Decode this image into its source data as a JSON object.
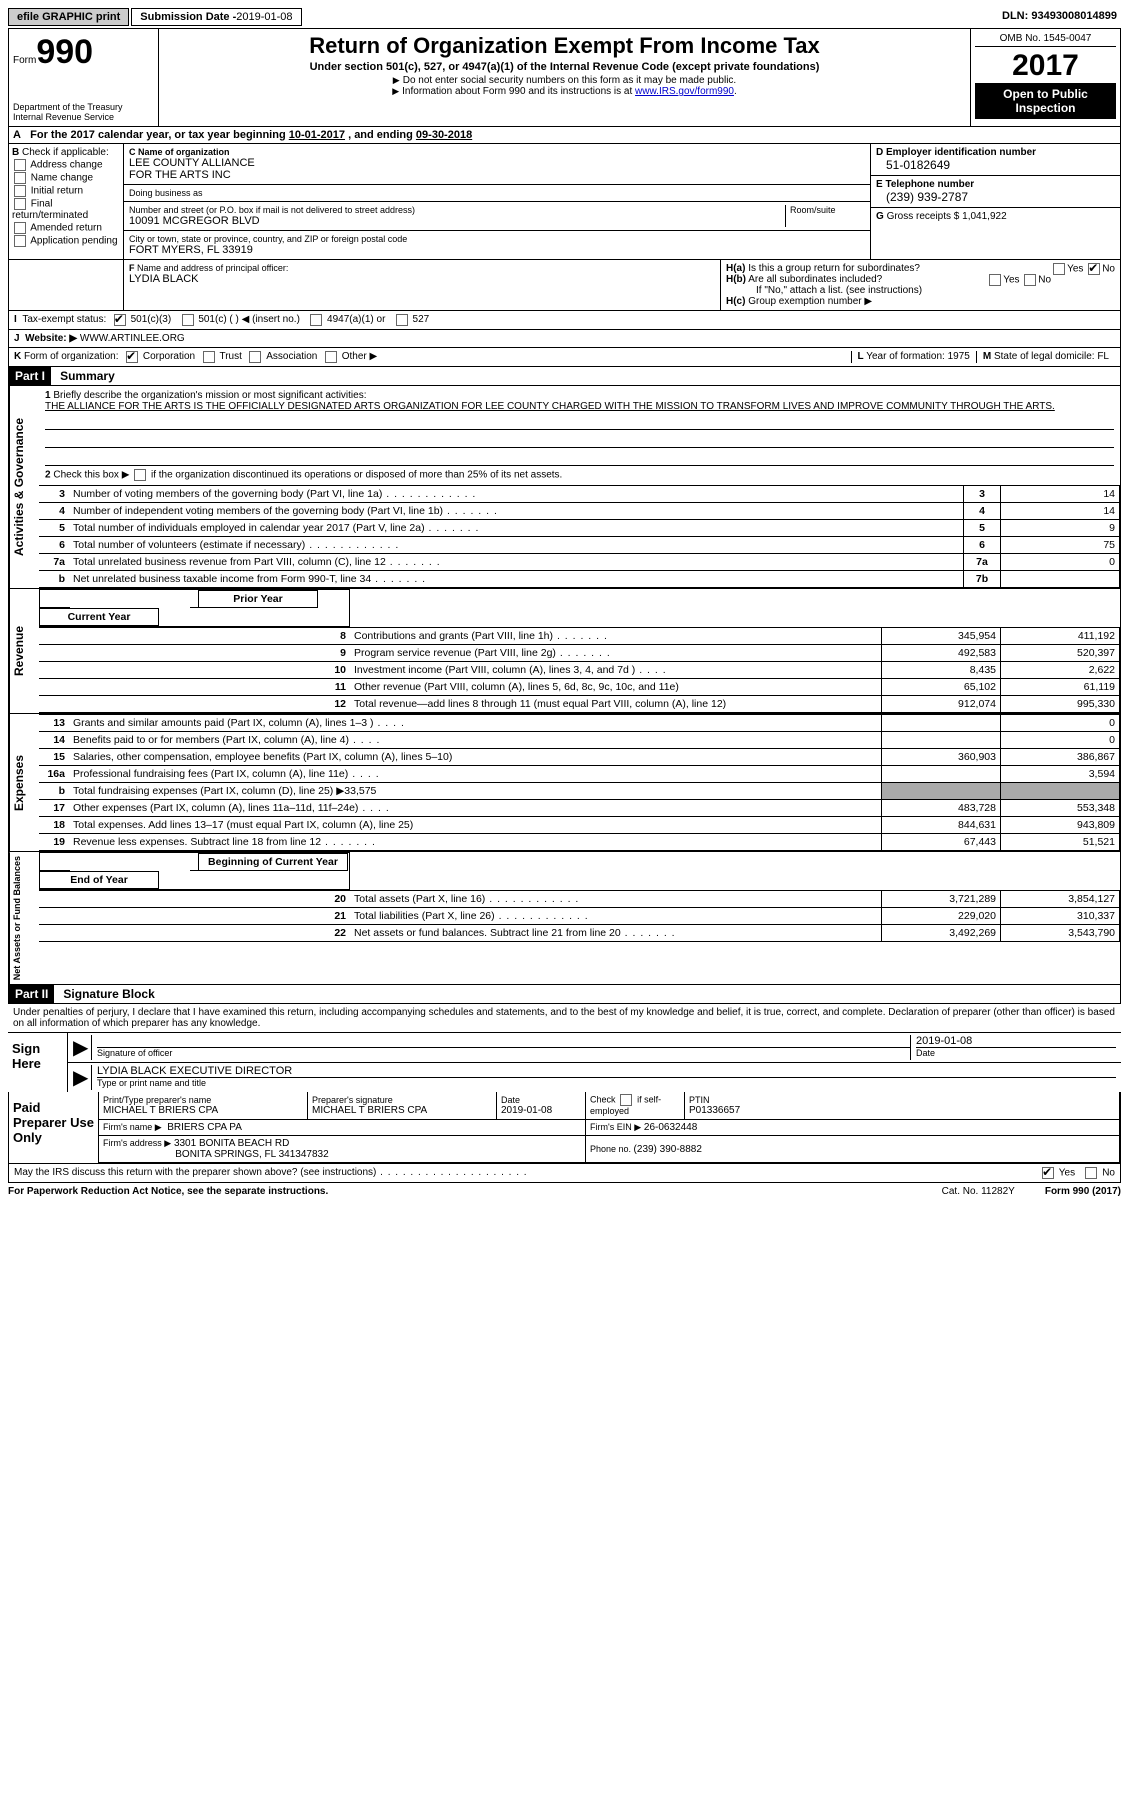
{
  "topbar": {
    "efile": "efile GRAPHIC print",
    "submission_label": "Submission Date - ",
    "submission_date": "2019-01-08",
    "dln_label": "DLN: ",
    "dln": "93493008014899"
  },
  "header": {
    "form_prefix": "Form",
    "form_number": "990",
    "dept1": "Department of the Treasury",
    "dept2": "Internal Revenue Service",
    "title": "Return of Organization Exempt From Income Tax",
    "subtitle": "Under section 501(c), 527, or 4947(a)(1) of the Internal Revenue Code (except private foundations)",
    "note1": "Do not enter social security numbers on this form as it may be made public.",
    "note2a": "Information about Form 990 and its instructions is at ",
    "note2_link": "www.IRS.gov/form990",
    "note2b": ".",
    "omb": "OMB No. 1545-0047",
    "year": "2017",
    "open": "Open to Public Inspection"
  },
  "rowA": {
    "prefix": "A",
    "text1": "For the 2017 calendar year, or tax year beginning ",
    "begin": "10-01-2017",
    "text2": " , and ending ",
    "end": "09-30-2018"
  },
  "sectionB": {
    "label": "B",
    "check_label": "Check if applicable:",
    "opts": [
      "Address change",
      "Name change",
      "Initial return",
      "Final return/terminated",
      "Amended return",
      "Application pending"
    ]
  },
  "sectionC": {
    "name_label": "C Name of organization",
    "name1": "LEE COUNTY ALLIANCE",
    "name2": "FOR THE ARTS INC",
    "dba_label": "Doing business as",
    "dba": "",
    "street_label": "Number and street (or P.O. box if mail is not delivered to street address)",
    "room_label": "Room/suite",
    "street": "10091 MCGREGOR BLVD",
    "city_label": "City or town, state or province, country, and ZIP or foreign postal code",
    "city": "FORT MYERS, FL  33919"
  },
  "sectionD": {
    "ein_label": "D Employer identification number",
    "ein": "51-0182649",
    "phone_label": "E Telephone number",
    "phone": "(239) 939-2787",
    "gross_label": "G",
    "gross_text": "Gross receipts $ ",
    "gross": "1,041,922"
  },
  "sectionF": {
    "label": "F",
    "text": "Name and address of principal officer:",
    "name": "LYDIA BLACK"
  },
  "sectionH": {
    "ha": "H(a)",
    "ha_text": "Is this a group return for subordinates?",
    "hb": "H(b)",
    "hb_text": "Are all subordinates included?",
    "hb_note": "If \"No,\" attach a list. (see instructions)",
    "hc": "H(c)",
    "hc_text": "Group exemption number ▶",
    "yes": "Yes",
    "no": "No"
  },
  "sectionI": {
    "label": "I",
    "text": "Tax-exempt status:",
    "o1": "501(c)(3)",
    "o2": "501(c) (  ) ◀ (insert no.)",
    "o3": "4947(a)(1) or",
    "o4": "527"
  },
  "sectionJ": {
    "label": "J",
    "text": "Website: ▶",
    "val": "WWW.ARTINLEE.ORG"
  },
  "sectionK": {
    "label": "K",
    "text": "Form of organization:",
    "o1": "Corporation",
    "o2": "Trust",
    "o3": "Association",
    "o4": "Other ▶"
  },
  "sectionL": {
    "label": "L",
    "text": "Year of formation: ",
    "val": "1975"
  },
  "sectionM": {
    "label": "M",
    "text": "State of legal domicile: ",
    "val": "FL"
  },
  "part1": {
    "bar": "Part I",
    "title": "Summary",
    "side_act": "Activities & Governance",
    "side_rev": "Revenue",
    "side_exp": "Expenses",
    "side_net": "Net Assets or Fund Balances",
    "l1_label": "1",
    "l1_text": "Briefly describe the organization's mission or most significant activities:",
    "l1_val": "THE ALLIANCE FOR THE ARTS IS THE OFFICIALLY DESIGNATED ARTS ORGANIZATION FOR LEE COUNTY CHARGED WITH THE MISSION TO TRANSFORM LIVES AND IMPROVE COMMUNITY THROUGH THE ARTS.",
    "l2": "Check this box ▶",
    "l2b": "if the organization discontinued its operations or disposed of more than 25% of its net assets.",
    "prior_year": "Prior Year",
    "current_year": "Current Year",
    "begin_year": "Beginning of Current Year",
    "end_year": "End of Year",
    "rows_gov": [
      {
        "n": "3",
        "t": "Number of voting members of the governing body (Part VI, line 1a)",
        "l": "3",
        "v": "14",
        "d": "dots"
      },
      {
        "n": "4",
        "t": "Number of independent voting members of the governing body (Part VI, line 1b)",
        "l": "4",
        "v": "14",
        "d": "dotss"
      },
      {
        "n": "5",
        "t": "Total number of individuals employed in calendar year 2017 (Part V, line 2a)",
        "l": "5",
        "v": "9",
        "d": "dotss"
      },
      {
        "n": "6",
        "t": "Total number of volunteers (estimate if necessary)",
        "l": "6",
        "v": "75",
        "d": "dots"
      },
      {
        "n": "7a",
        "t": "Total unrelated business revenue from Part VIII, column (C), line 12",
        "l": "7a",
        "v": "0",
        "d": "dotss"
      },
      {
        "n": "b",
        "t": "Net unrelated business taxable income from Form 990-T, line 34",
        "l": "7b",
        "v": "",
        "d": "dotss"
      }
    ],
    "rows_rev": [
      {
        "n": "8",
        "t": "Contributions and grants (Part VIII, line 1h)",
        "p": "345,954",
        "c": "411,192",
        "d": "dotss"
      },
      {
        "n": "9",
        "t": "Program service revenue (Part VIII, line 2g)",
        "p": "492,583",
        "c": "520,397",
        "d": "dotss"
      },
      {
        "n": "10",
        "t": "Investment income (Part VIII, column (A), lines 3, 4, and 7d )",
        "p": "8,435",
        "c": "2,622",
        "d": "dotsss"
      },
      {
        "n": "11",
        "t": "Other revenue (Part VIII, column (A), lines 5, 6d, 8c, 9c, 10c, and 11e)",
        "p": "65,102",
        "c": "61,119"
      },
      {
        "n": "12",
        "t": "Total revenue—add lines 8 through 11 (must equal Part VIII, column (A), line 12)",
        "p": "912,074",
        "c": "995,330"
      }
    ],
    "rows_exp": [
      {
        "n": "13",
        "t": "Grants and similar amounts paid (Part IX, column (A), lines 1–3 )",
        "p": "",
        "c": "0",
        "d": "dotsss"
      },
      {
        "n": "14",
        "t": "Benefits paid to or for members (Part IX, column (A), line 4)",
        "p": "",
        "c": "0",
        "d": "dotsss"
      },
      {
        "n": "15",
        "t": "Salaries, other compensation, employee benefits (Part IX, column (A), lines 5–10)",
        "p": "360,903",
        "c": "386,867"
      },
      {
        "n": "16a",
        "t": "Professional fundraising fees (Part IX, column (A), line 11e)",
        "p": "",
        "c": "3,594",
        "d": "dotsss"
      },
      {
        "n": "b",
        "t": "Total fundraising expenses (Part IX, column (D), line 25) ▶33,575",
        "shade": true
      },
      {
        "n": "17",
        "t": "Other expenses (Part IX, column (A), lines 11a–11d, 11f–24e)",
        "p": "483,728",
        "c": "553,348",
        "d": "dotsss"
      },
      {
        "n": "18",
        "t": "Total expenses. Add lines 13–17 (must equal Part IX, column (A), line 25)",
        "p": "844,631",
        "c": "943,809"
      },
      {
        "n": "19",
        "t": "Revenue less expenses. Subtract line 18 from line 12",
        "p": "67,443",
        "c": "51,521",
        "d": "dotss"
      }
    ],
    "rows_net": [
      {
        "n": "20",
        "t": "Total assets (Part X, line 16)",
        "p": "3,721,289",
        "c": "3,854,127",
        "d": "dots"
      },
      {
        "n": "21",
        "t": "Total liabilities (Part X, line 26)",
        "p": "229,020",
        "c": "310,337",
        "d": "dots"
      },
      {
        "n": "22",
        "t": "Net assets or fund balances. Subtract line 21 from line 20",
        "p": "3,492,269",
        "c": "3,543,790",
        "d": "dotss"
      }
    ]
  },
  "part2": {
    "bar": "Part II",
    "title": "Signature Block",
    "decl": "Under penalties of perjury, I declare that I have examined this return, including accompanying schedules and statements, and to the best of my knowledge and belief, it is true, correct, and complete. Declaration of preparer (other than officer) is based on all information of which preparer has any knowledge.",
    "sign_here": "Sign Here",
    "sig_officer": "Signature of officer",
    "date_label": "Date",
    "sig_date": "2019-01-08",
    "name_title": "LYDIA BLACK  EXECUTIVE DIRECTOR",
    "type_label": "Type or print name and title",
    "paid_prep": "Paid Preparer Use Only",
    "prep_name_label": "Print/Type preparer's name",
    "prep_name": "MICHAEL T BRIERS CPA",
    "prep_sig_label": "Preparer's signature",
    "prep_sig": "MICHAEL T BRIERS CPA",
    "prep_date_label": "Date",
    "prep_date": "2019-01-08",
    "check_label": "Check",
    "self_emp": "if self-employed",
    "ptin_label": "PTIN",
    "ptin": "P01336657",
    "firm_name_label": "Firm's name    ▶",
    "firm_name": "BRIERS CPA PA",
    "firm_ein_label": "Firm's EIN ▶",
    "firm_ein": "26-0632448",
    "firm_addr_label": "Firm's address ▶",
    "firm_addr1": "3301 BONITA BEACH RD",
    "firm_addr2": "BONITA SPRINGS, FL  341347832",
    "phone_label": "Phone no. ",
    "phone": "(239) 390-8882",
    "discuss": "May the IRS discuss this return with the preparer shown above? (see instructions)",
    "yes": "Yes",
    "no": "No"
  },
  "footer": {
    "pra": "For Paperwork Reduction Act Notice, see the separate instructions.",
    "cat": "Cat. No. 11282Y",
    "form": "Form 990 (2017)"
  }
}
